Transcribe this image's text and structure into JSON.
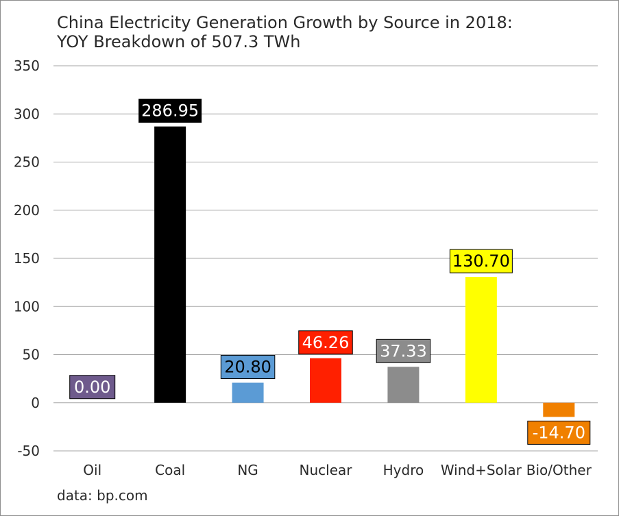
{
  "chart_data": {
    "type": "bar",
    "title_line1": "China Electricity Generation Growth by Source in 2018:",
    "title_line2": "YOY Breakdown of 507.3 TWh",
    "source": "data: bp.com",
    "categories": [
      "Oil",
      "Coal",
      "NG",
      "Nuclear",
      "Hydro",
      "Wind+Solar",
      "Bio/Other"
    ],
    "values": [
      0.0,
      286.95,
      20.8,
      46.26,
      37.33,
      130.7,
      -14.7
    ],
    "value_labels": [
      "0.00",
      "286.95",
      "20.80",
      "46.26",
      "37.33",
      "130.70",
      "-14.70"
    ],
    "colors": [
      "#6e5a8c",
      "#000000",
      "#5b9bd5",
      "#ff2000",
      "#8c8c8c",
      "#ffff00",
      "#f08000"
    ],
    "label_text_colors": [
      "#ffffff",
      "#ffffff",
      "#000000",
      "#ffffff",
      "#ffffff",
      "#000000",
      "#ffffff"
    ],
    "yticks": [
      -50,
      0,
      50,
      100,
      150,
      200,
      250,
      300,
      350
    ],
    "ylim": [
      -50,
      350
    ],
    "grid": true,
    "legend": "none"
  }
}
